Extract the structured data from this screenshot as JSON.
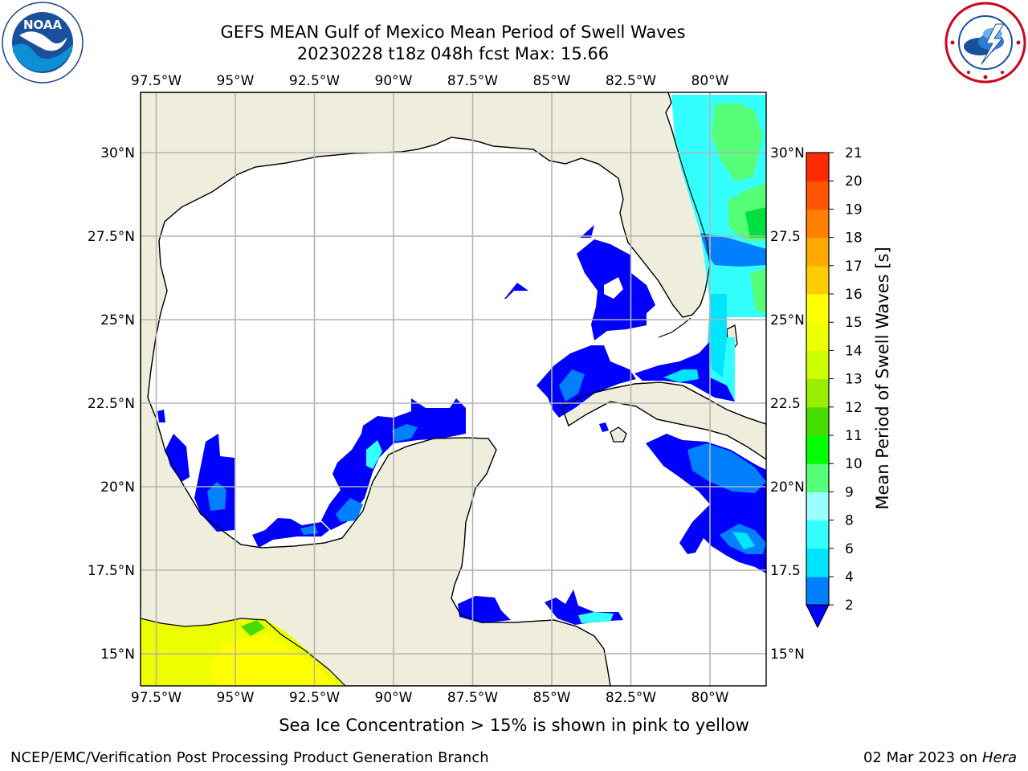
{
  "title_line1": "GEFS MEAN Gulf of Mexico Mean Period of Swell Waves",
  "title_line2": "20230228 t18z 048h fcst   Max: 15.66",
  "lon_ticks": [
    "97.5°W",
    "95°W",
    "92.5°W",
    "90°W",
    "87.5°W",
    "85°W",
    "82.5°W",
    "80°W"
  ],
  "lon_values": [
    -97.5,
    -95,
    -92.5,
    -90,
    -87.5,
    -85,
    -82.5,
    -80
  ],
  "lat_ticks_left": [
    "30°N",
    "27.5°N",
    "25°N",
    "22.5°N",
    "20°N",
    "17.5°N",
    "15°N"
  ],
  "lat_ticks_right": [
    "30°N",
    "27.5",
    "25°N",
    "22.5",
    "20°N",
    "17.5",
    "15°N"
  ],
  "lat_values": [
    30,
    27.5,
    25,
    22.5,
    20,
    17.5,
    15
  ],
  "colorbar": {
    "label": "Mean Period of Swell Waves [s]",
    "levels": [
      "2",
      "4",
      "6",
      "8",
      "9",
      "10",
      "11",
      "12",
      "13",
      "14",
      "15",
      "16",
      "17",
      "18",
      "19",
      "20",
      "21"
    ],
    "colors": [
      "#0000ff",
      "#0080ff",
      "#00e5ff",
      "#33ffff",
      "#99ffff",
      "#55ff77",
      "#00ff00",
      "#44dd00",
      "#99ee00",
      "#ccff00",
      "#eeff00",
      "#ffff00",
      "#ffcc00",
      "#ffaa00",
      "#ff8000",
      "#ff5500",
      "#ff2a00",
      "#ff0000"
    ],
    "under_color": "#0000ff"
  },
  "map_colors": {
    "land": "#efeddc",
    "ocean": "#ffffff",
    "grid": "#b4b4b4",
    "coast": "#000000"
  },
  "footer_note": "Sea Ice Concentration > 15% is shown in pink to yellow",
  "footer_credit": "NCEP/EMC/Verification Post Processing Product Generation Branch",
  "footer_date": "02 Mar 2023 on",
  "footer_machine": "Hera",
  "logos": {
    "left": "NOAA",
    "right_icon": "nws-logo-icon"
  }
}
